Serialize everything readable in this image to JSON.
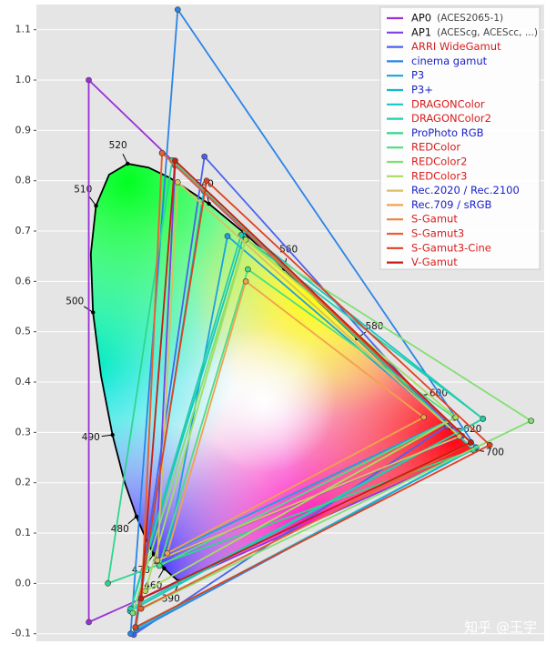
{
  "chart_data": {
    "type": "gamut",
    "xlim": [
      -0.1,
      0.87
    ],
    "ylim": [
      -0.115,
      1.15
    ],
    "yticks": [
      -0.1,
      {
        "value": 0,
        "label": "0.0"
      },
      0.1,
      0.2,
      0.3,
      0.4,
      0.5,
      0.6,
      0.7,
      0.8,
      0.9,
      {
        "value": 1,
        "label": "1.0"
      },
      1.1
    ],
    "grid": true,
    "legend": "upper right",
    "spectral_locus": {
      "wavelengths": [
        380,
        390,
        400,
        410,
        420,
        430,
        440,
        450,
        460,
        470,
        475,
        480,
        485,
        490,
        495,
        500,
        505,
        510,
        515,
        520,
        525,
        530,
        540,
        550,
        560,
        570,
        580,
        590,
        600,
        610,
        620,
        640,
        660,
        680,
        700
      ],
      "x": [
        0.1741,
        0.1738,
        0.1733,
        0.1726,
        0.1714,
        0.1689,
        0.1644,
        0.1566,
        0.144,
        0.1241,
        0.1096,
        0.0913,
        0.0687,
        0.0454,
        0.0235,
        0.0082,
        0.0039,
        0.0139,
        0.0389,
        0.0743,
        0.1142,
        0.1547,
        0.2296,
        0.3016,
        0.3731,
        0.4441,
        0.5125,
        0.5752,
        0.627,
        0.6658,
        0.6915,
        0.719,
        0.73,
        0.7334,
        0.7347
      ],
      "y": [
        0.005,
        0.0049,
        0.0048,
        0.0048,
        0.0051,
        0.0069,
        0.0109,
        0.0177,
        0.0297,
        0.0578,
        0.0868,
        0.1327,
        0.2007,
        0.295,
        0.4127,
        0.5384,
        0.6548,
        0.7502,
        0.812,
        0.8338,
        0.8262,
        0.8059,
        0.7543,
        0.6923,
        0.6245,
        0.5547,
        0.4866,
        0.4242,
        0.3725,
        0.334,
        0.3083,
        0.2809,
        0.27,
        0.2666,
        0.2653
      ]
    },
    "labeled_wavelengths": [
      390,
      460,
      470,
      480,
      490,
      500,
      510,
      520,
      540,
      560,
      580,
      600,
      620,
      700
    ],
    "series": [
      {
        "name": "AP0",
        "note": "(ACES2065-1)",
        "color": "#9b30d9",
        "text_color": "#111111",
        "x": [
          0.7347,
          0.0,
          0.0001
        ],
        "y": [
          0.2653,
          1.0,
          -0.077
        ]
      },
      {
        "name": "AP1",
        "note": "(ACEScg, ACEScc, ...)",
        "color": "#7b3fe4",
        "text_color": "#111111",
        "x": [
          0.713,
          0.165,
          0.128
        ],
        "y": [
          0.293,
          0.83,
          0.044
        ]
      },
      {
        "name": "ARRI WideGamut",
        "color": "#4a62ee",
        "text_color": "#d81e1e",
        "x": [
          0.684,
          0.221,
          0.0861
        ],
        "y": [
          0.313,
          0.848,
          -0.102
        ]
      },
      {
        "name": "cinema gamut",
        "color": "#2a84e6",
        "text_color": "#1a22c8",
        "x": [
          0.74,
          0.17,
          0.08
        ],
        "y": [
          0.27,
          1.14,
          -0.1
        ]
      },
      {
        "name": "P3",
        "color": "#1aa2de",
        "text_color": "#1a22c8",
        "x": [
          0.68,
          0.265,
          0.15
        ],
        "y": [
          0.32,
          0.69,
          0.06
        ]
      },
      {
        "name": "P3+",
        "color": "#12b8d0",
        "text_color": "#1a22c8",
        "x": [
          0.74,
          0.22,
          0.09
        ],
        "y": [
          0.27,
          0.78,
          -0.09
        ]
      },
      {
        "name": "DRAGONColor",
        "color": "#18c6c0",
        "text_color": "#d81e1e",
        "x": [
          0.753,
          0.299,
          0.079
        ],
        "y": [
          0.327,
          0.7,
          -0.055
        ]
      },
      {
        "name": "DRAGONColor2",
        "color": "#20d0aa",
        "text_color": "#d81e1e",
        "x": [
          0.753,
          0.291,
          0.08
        ],
        "y": [
          0.327,
          0.692,
          -0.05
        ]
      },
      {
        "name": "ProPhoto RGB",
        "color": "#2ed690",
        "text_color": "#1a22c8",
        "x": [
          0.7347,
          0.1596,
          0.0366
        ],
        "y": [
          0.2653,
          0.8404,
          0.0001
        ]
      },
      {
        "name": "REDColor",
        "color": "#4cde84",
        "text_color": "#d81e1e",
        "x": [
          0.699,
          0.304,
          0.135
        ],
        "y": [
          0.329,
          0.624,
          0.035
        ]
      },
      {
        "name": "REDColor2",
        "color": "#80e070",
        "text_color": "#d81e1e",
        "x": [
          0.845,
          0.3,
          0.084
        ],
        "y": [
          0.323,
          0.684,
          -0.059
        ]
      },
      {
        "name": "REDColor3",
        "color": "#a8dc5e",
        "text_color": "#d81e1e",
        "x": [
          0.701,
          0.3,
          0.108
        ],
        "y": [
          0.33,
          0.683,
          -0.015
        ]
      },
      {
        "name": "Rec.2020 / Rec.2100",
        "color": "#d8c060",
        "text_color": "#1a22c8",
        "x": [
          0.708,
          0.17,
          0.131
        ],
        "y": [
          0.292,
          0.797,
          0.046
        ]
      },
      {
        "name": "Rec.709 / sRGB",
        "color": "#f0a24e",
        "text_color": "#1a22c8",
        "x": [
          0.64,
          0.3,
          0.15
        ],
        "y": [
          0.33,
          0.6,
          0.06
        ]
      },
      {
        "name": "S-Gamut",
        "color": "#f08040",
        "text_color": "#d81e1e",
        "x": [
          0.73,
          0.14,
          0.1
        ],
        "y": [
          0.28,
          0.855,
          -0.05
        ]
      },
      {
        "name": "S-Gamut3",
        "color": "#e86030",
        "text_color": "#d81e1e",
        "x": [
          0.73,
          0.14,
          0.1
        ],
        "y": [
          0.28,
          0.855,
          -0.05
        ]
      },
      {
        "name": "S-Gamut3-Cine",
        "color": "#e04020",
        "text_color": "#d81e1e",
        "x": [
          0.766,
          0.225,
          0.089
        ],
        "y": [
          0.275,
          0.8,
          -0.087
        ]
      },
      {
        "name": "V-Gamut",
        "color": "#c81c10",
        "text_color": "#d81e1e",
        "x": [
          0.73,
          0.165,
          0.1
        ],
        "y": [
          0.28,
          0.84,
          -0.03
        ]
      }
    ],
    "watermark": "知乎 @王宇"
  }
}
